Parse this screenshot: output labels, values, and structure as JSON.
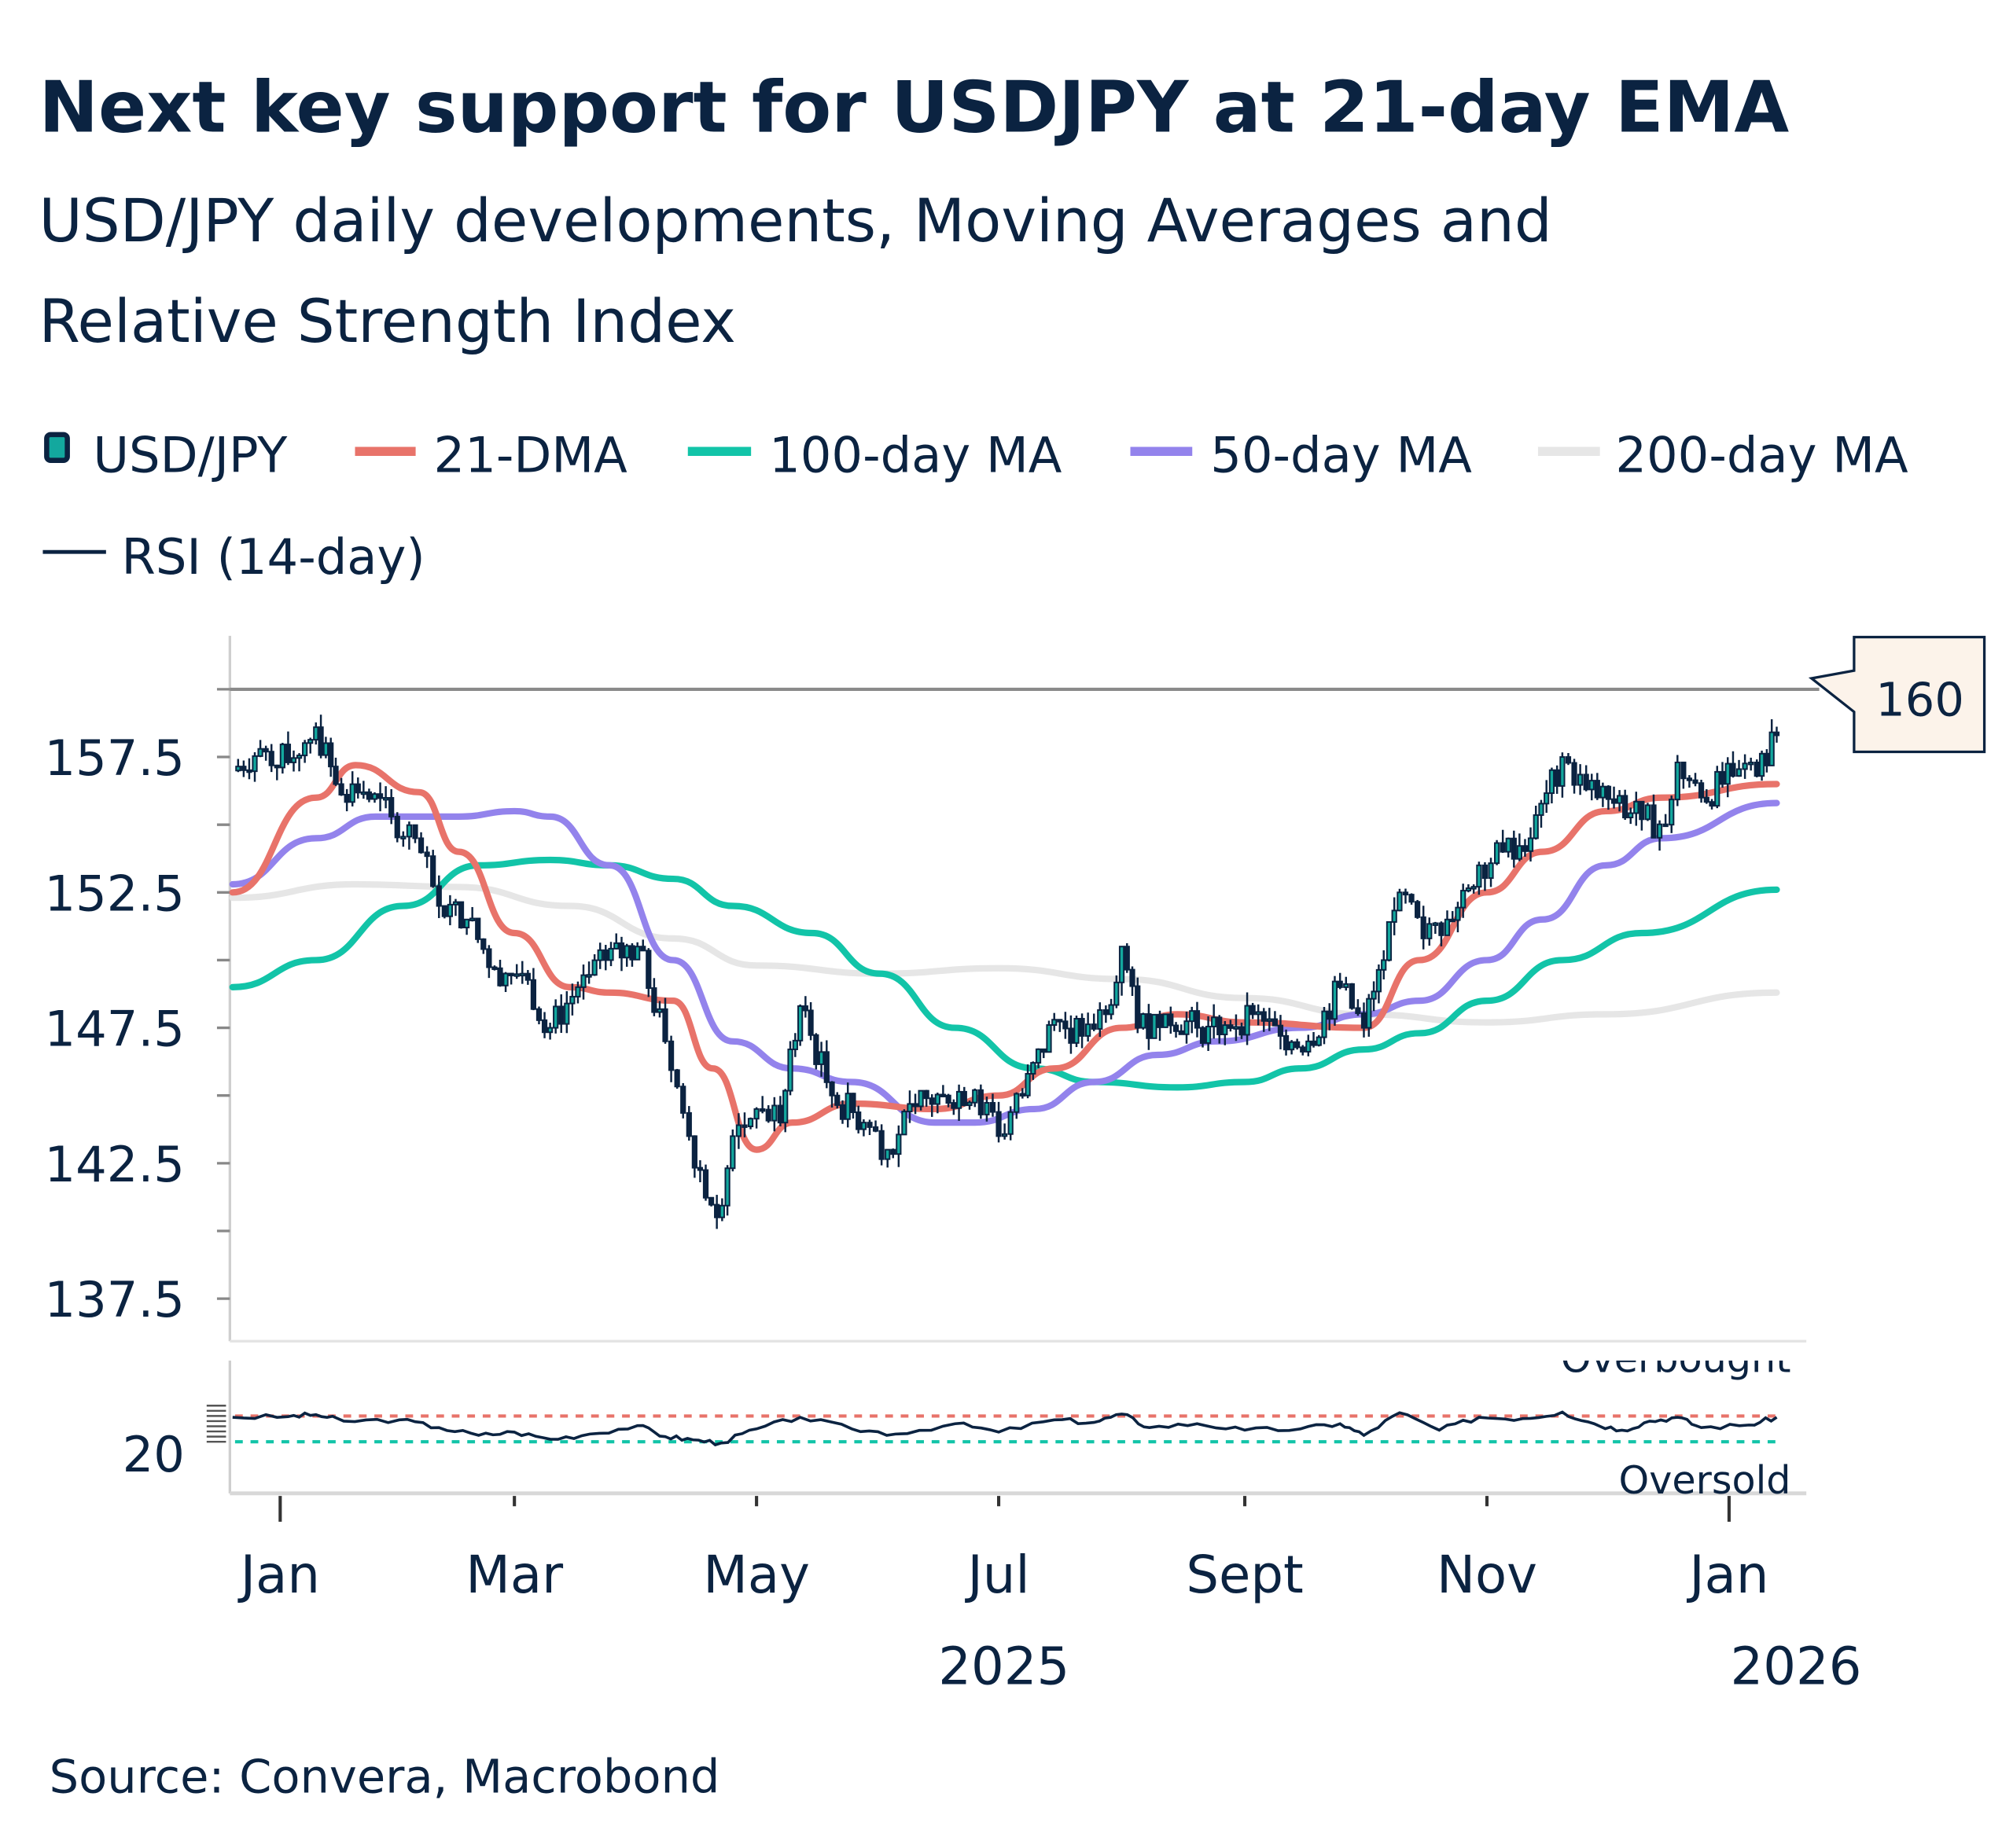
{
  "title": "Next key support for USDJPY at 21-day EMA",
  "subtitle_line1": "USD/JPY daily developments, Moving Averages and",
  "subtitle_line2": "Relative Strength Index",
  "source": "Source: Convera, Macrobond",
  "colors": {
    "text": "#0b2341",
    "usdjpy": "#0b2341",
    "usdjpy_body": "#13a89e",
    "dma21": "#e8736a",
    "ma100": "#12c4a8",
    "ma50": "#9383ec",
    "ma200": "#e6e6e6",
    "rsi": "#0b2341",
    "callout_bg": "#fcf3ea"
  },
  "legend": [
    {
      "label": "USD/JPY",
      "icon": "candlestick-icon"
    },
    {
      "label": "21-DMA",
      "icon": "line-icon"
    },
    {
      "label": "100-day MA",
      "icon": "line-icon"
    },
    {
      "label": "50-day MA",
      "icon": "line-icon"
    },
    {
      "label": "200-day MA",
      "icon": "line-icon"
    },
    {
      "label": "RSI (14-day)",
      "icon": "line-icon"
    }
  ],
  "chart_data": [
    {
      "type": "line",
      "title": "",
      "y_ticks": [
        "157.5",
        "152.5",
        "147.5",
        "142.5",
        "137.5"
      ],
      "ylim": [
        135.4,
        161.5
      ],
      "x_ticks": [
        "Jan",
        "Mar",
        "May",
        "Jul",
        "Sept",
        "Nov",
        "Jan"
      ],
      "x_tick_dates": [
        "2025-01-01",
        "2025-03-01",
        "2025-05-01",
        "2025-07-01",
        "2025-09-01",
        "2025-11-01",
        "2026-01-01"
      ],
      "year_labels": [
        "2025",
        "2026"
      ],
      "reference_line": {
        "value": 160,
        "label": "160"
      },
      "series": [
        {
          "name": "USD/JPY",
          "kind": "candlestick",
          "points": [
            [
              "2024-12-20",
              157.0
            ],
            [
              "2024-12-27",
              157.8
            ],
            [
              "2025-01-03",
              157.3
            ],
            [
              "2025-01-10",
              158.6
            ],
            [
              "2025-01-15",
              156.5
            ],
            [
              "2025-01-22",
              156.2
            ],
            [
              "2025-01-29",
              155.3
            ],
            [
              "2025-02-04",
              154.5
            ],
            [
              "2025-02-10",
              152.0
            ],
            [
              "2025-02-17",
              151.5
            ],
            [
              "2025-02-24",
              149.7
            ],
            [
              "2025-03-03",
              149.5
            ],
            [
              "2025-03-10",
              147.5
            ],
            [
              "2025-03-17",
              149.0
            ],
            [
              "2025-03-24",
              150.0
            ],
            [
              "2025-04-01",
              150.5
            ],
            [
              "2025-04-08",
              147.0
            ],
            [
              "2025-04-14",
              143.5
            ],
            [
              "2025-04-21",
              140.5
            ],
            [
              "2025-04-25",
              143.5
            ],
            [
              "2025-05-01",
              144.5
            ],
            [
              "2025-05-07",
              144.0
            ],
            [
              "2025-05-12",
              148.3
            ],
            [
              "2025-05-20",
              145.0
            ],
            [
              "2025-05-28",
              144.0
            ],
            [
              "2025-06-03",
              143.0
            ],
            [
              "2025-06-10",
              144.6
            ],
            [
              "2025-06-17",
              145.0
            ],
            [
              "2025-06-25",
              145.2
            ],
            [
              "2025-07-01",
              143.5
            ],
            [
              "2025-07-07",
              145.0
            ],
            [
              "2025-07-15",
              147.8
            ],
            [
              "2025-07-22",
              147.2
            ],
            [
              "2025-07-28",
              148.0
            ],
            [
              "2025-08-01",
              150.5
            ],
            [
              "2025-08-05",
              147.5
            ],
            [
              "2025-08-12",
              148.0
            ],
            [
              "2025-08-20",
              147.5
            ],
            [
              "2025-08-27",
              147.6
            ],
            [
              "2025-09-03",
              148.0
            ],
            [
              "2025-09-10",
              147.2
            ],
            [
              "2025-09-17",
              147.0
            ],
            [
              "2025-09-25",
              149.0
            ],
            [
              "2025-10-01",
              147.5
            ],
            [
              "2025-10-06",
              150.0
            ],
            [
              "2025-10-10",
              152.5
            ],
            [
              "2025-10-16",
              150.8
            ],
            [
              "2025-10-22",
              151.5
            ],
            [
              "2025-10-30",
              153.5
            ],
            [
              "2025-11-05",
              154.0
            ],
            [
              "2025-11-12",
              154.5
            ],
            [
              "2025-11-20",
              157.5
            ],
            [
              "2025-11-26",
              156.3
            ],
            [
              "2025-12-03",
              155.8
            ],
            [
              "2025-12-10",
              155.2
            ],
            [
              "2025-12-16",
              155.0
            ],
            [
              "2025-12-19",
              157.3
            ],
            [
              "2025-12-25",
              156.0
            ],
            [
              "2026-01-02",
              156.8
            ],
            [
              "2026-01-08",
              156.8
            ],
            [
              "2026-01-13",
              158.3
            ]
          ]
        },
        {
          "name": "21-DMA",
          "points": [
            [
              "2024-12-20",
              152.5
            ],
            [
              "2025-01-10",
              156.0
            ],
            [
              "2025-01-20",
              157.2
            ],
            [
              "2025-02-05",
              156.2
            ],
            [
              "2025-02-15",
              154.0
            ],
            [
              "2025-03-01",
              151.0
            ],
            [
              "2025-03-15",
              149.0
            ],
            [
              "2025-03-25",
              148.8
            ],
            [
              "2025-04-10",
              148.5
            ],
            [
              "2025-04-20",
              146.0
            ],
            [
              "2025-05-01",
              143.0
            ],
            [
              "2025-05-10",
              144.0
            ],
            [
              "2025-05-25",
              144.7
            ],
            [
              "2025-06-15",
              144.5
            ],
            [
              "2025-07-01",
              145.0
            ],
            [
              "2025-07-15",
              146.0
            ],
            [
              "2025-08-01",
              147.5
            ],
            [
              "2025-08-15",
              148.0
            ],
            [
              "2025-09-01",
              147.7
            ],
            [
              "2025-10-01",
              147.5
            ],
            [
              "2025-10-15",
              150.0
            ],
            [
              "2025-11-01",
              152.5
            ],
            [
              "2025-11-15",
              154.0
            ],
            [
              "2025-12-01",
              155.5
            ],
            [
              "2025-12-15",
              156.0
            ],
            [
              "2026-01-13",
              156.5
            ]
          ]
        },
        {
          "name": "100-day MA",
          "points": [
            [
              "2024-12-20",
              149.0
            ],
            [
              "2025-01-10",
              150.0
            ],
            [
              "2025-02-01",
              152.0
            ],
            [
              "2025-02-20",
              153.5
            ],
            [
              "2025-03-10",
              153.7
            ],
            [
              "2025-03-25",
              153.5
            ],
            [
              "2025-04-10",
              153.0
            ],
            [
              "2025-04-25",
              152.0
            ],
            [
              "2025-05-15",
              151.0
            ],
            [
              "2025-06-01",
              149.5
            ],
            [
              "2025-06-20",
              147.5
            ],
            [
              "2025-07-10",
              146.0
            ],
            [
              "2025-07-25",
              145.5
            ],
            [
              "2025-08-15",
              145.3
            ],
            [
              "2025-09-01",
              145.5
            ],
            [
              "2025-09-15",
              146.0
            ],
            [
              "2025-10-01",
              146.7
            ],
            [
              "2025-10-15",
              147.3
            ],
            [
              "2025-11-01",
              148.5
            ],
            [
              "2025-11-20",
              150.0
            ],
            [
              "2025-12-10",
              151.0
            ],
            [
              "2026-01-13",
              152.6
            ]
          ]
        },
        {
          "name": "50-day MA",
          "points": [
            [
              "2024-12-20",
              152.8
            ],
            [
              "2025-01-10",
              154.5
            ],
            [
              "2025-01-25",
              155.3
            ],
            [
              "2025-02-15",
              155.3
            ],
            [
              "2025-03-01",
              155.5
            ],
            [
              "2025-03-10",
              155.3
            ],
            [
              "2025-03-25",
              153.5
            ],
            [
              "2025-04-10",
              150.0
            ],
            [
              "2025-04-25",
              147.0
            ],
            [
              "2025-05-10",
              146.0
            ],
            [
              "2025-05-25",
              145.5
            ],
            [
              "2025-06-15",
              144.0
            ],
            [
              "2025-06-25",
              144.0
            ],
            [
              "2025-07-10",
              144.5
            ],
            [
              "2025-07-25",
              145.5
            ],
            [
              "2025-08-10",
              146.5
            ],
            [
              "2025-08-25",
              147.0
            ],
            [
              "2025-09-15",
              147.5
            ],
            [
              "2025-10-01",
              148.0
            ],
            [
              "2025-10-15",
              148.5
            ],
            [
              "2025-11-01",
              150.0
            ],
            [
              "2025-11-15",
              151.5
            ],
            [
              "2025-12-01",
              153.5
            ],
            [
              "2025-12-15",
              154.5
            ],
            [
              "2026-01-13",
              155.8
            ]
          ]
        },
        {
          "name": "200-day MA",
          "points": [
            [
              "2024-12-20",
              152.3
            ],
            [
              "2025-01-20",
              152.8
            ],
            [
              "2025-02-15",
              152.7
            ],
            [
              "2025-03-15",
              152.0
            ],
            [
              "2025-04-10",
              150.8
            ],
            [
              "2025-05-01",
              149.8
            ],
            [
              "2025-06-01",
              149.5
            ],
            [
              "2025-07-01",
              149.7
            ],
            [
              "2025-08-01",
              149.3
            ],
            [
              "2025-09-01",
              148.6
            ],
            [
              "2025-10-01",
              148.0
            ],
            [
              "2025-11-01",
              147.7
            ],
            [
              "2025-12-01",
              148.0
            ],
            [
              "2026-01-13",
              148.8
            ]
          ]
        }
      ]
    },
    {
      "type": "line",
      "title": "",
      "y_ticks": [
        "20"
      ],
      "overbought": 70,
      "oversold": 30,
      "overbought_label": "Overbought",
      "oversold_label": "Oversold",
      "series": [
        {
          "name": "RSI (14-day)",
          "points": [
            [
              "2024-12-20",
              68
            ],
            [
              "2025-01-03",
              69
            ],
            [
              "2025-01-10",
              72
            ],
            [
              "2025-01-17",
              62
            ],
            [
              "2025-01-31",
              64
            ],
            [
              "2025-02-10",
              52
            ],
            [
              "2025-02-20",
              40
            ],
            [
              "2025-03-01",
              45
            ],
            [
              "2025-03-10",
              34
            ],
            [
              "2025-03-20",
              42
            ],
            [
              "2025-04-01",
              55
            ],
            [
              "2025-04-08",
              38
            ],
            [
              "2025-04-15",
              33
            ],
            [
              "2025-04-22",
              28
            ],
            [
              "2025-05-01",
              50
            ],
            [
              "2025-05-12",
              68
            ],
            [
              "2025-05-25",
              50
            ],
            [
              "2025-06-05",
              42
            ],
            [
              "2025-06-20",
              58
            ],
            [
              "2025-07-01",
              45
            ],
            [
              "2025-07-15",
              64
            ],
            [
              "2025-07-25",
              60
            ],
            [
              "2025-08-01",
              73
            ],
            [
              "2025-08-08",
              52
            ],
            [
              "2025-08-20",
              58
            ],
            [
              "2025-09-01",
              48
            ],
            [
              "2025-09-15",
              50
            ],
            [
              "2025-09-25",
              58
            ],
            [
              "2025-10-01",
              40
            ],
            [
              "2025-10-10",
              75
            ],
            [
              "2025-10-20",
              48
            ],
            [
              "2025-10-30",
              68
            ],
            [
              "2025-11-10",
              66
            ],
            [
              "2025-11-20",
              76
            ],
            [
              "2025-11-28",
              58
            ],
            [
              "2025-12-05",
              48
            ],
            [
              "2025-12-12",
              62
            ],
            [
              "2025-12-19",
              68
            ],
            [
              "2025-12-25",
              52
            ],
            [
              "2026-01-06",
              56
            ],
            [
              "2026-01-13",
              68
            ]
          ]
        }
      ]
    }
  ]
}
